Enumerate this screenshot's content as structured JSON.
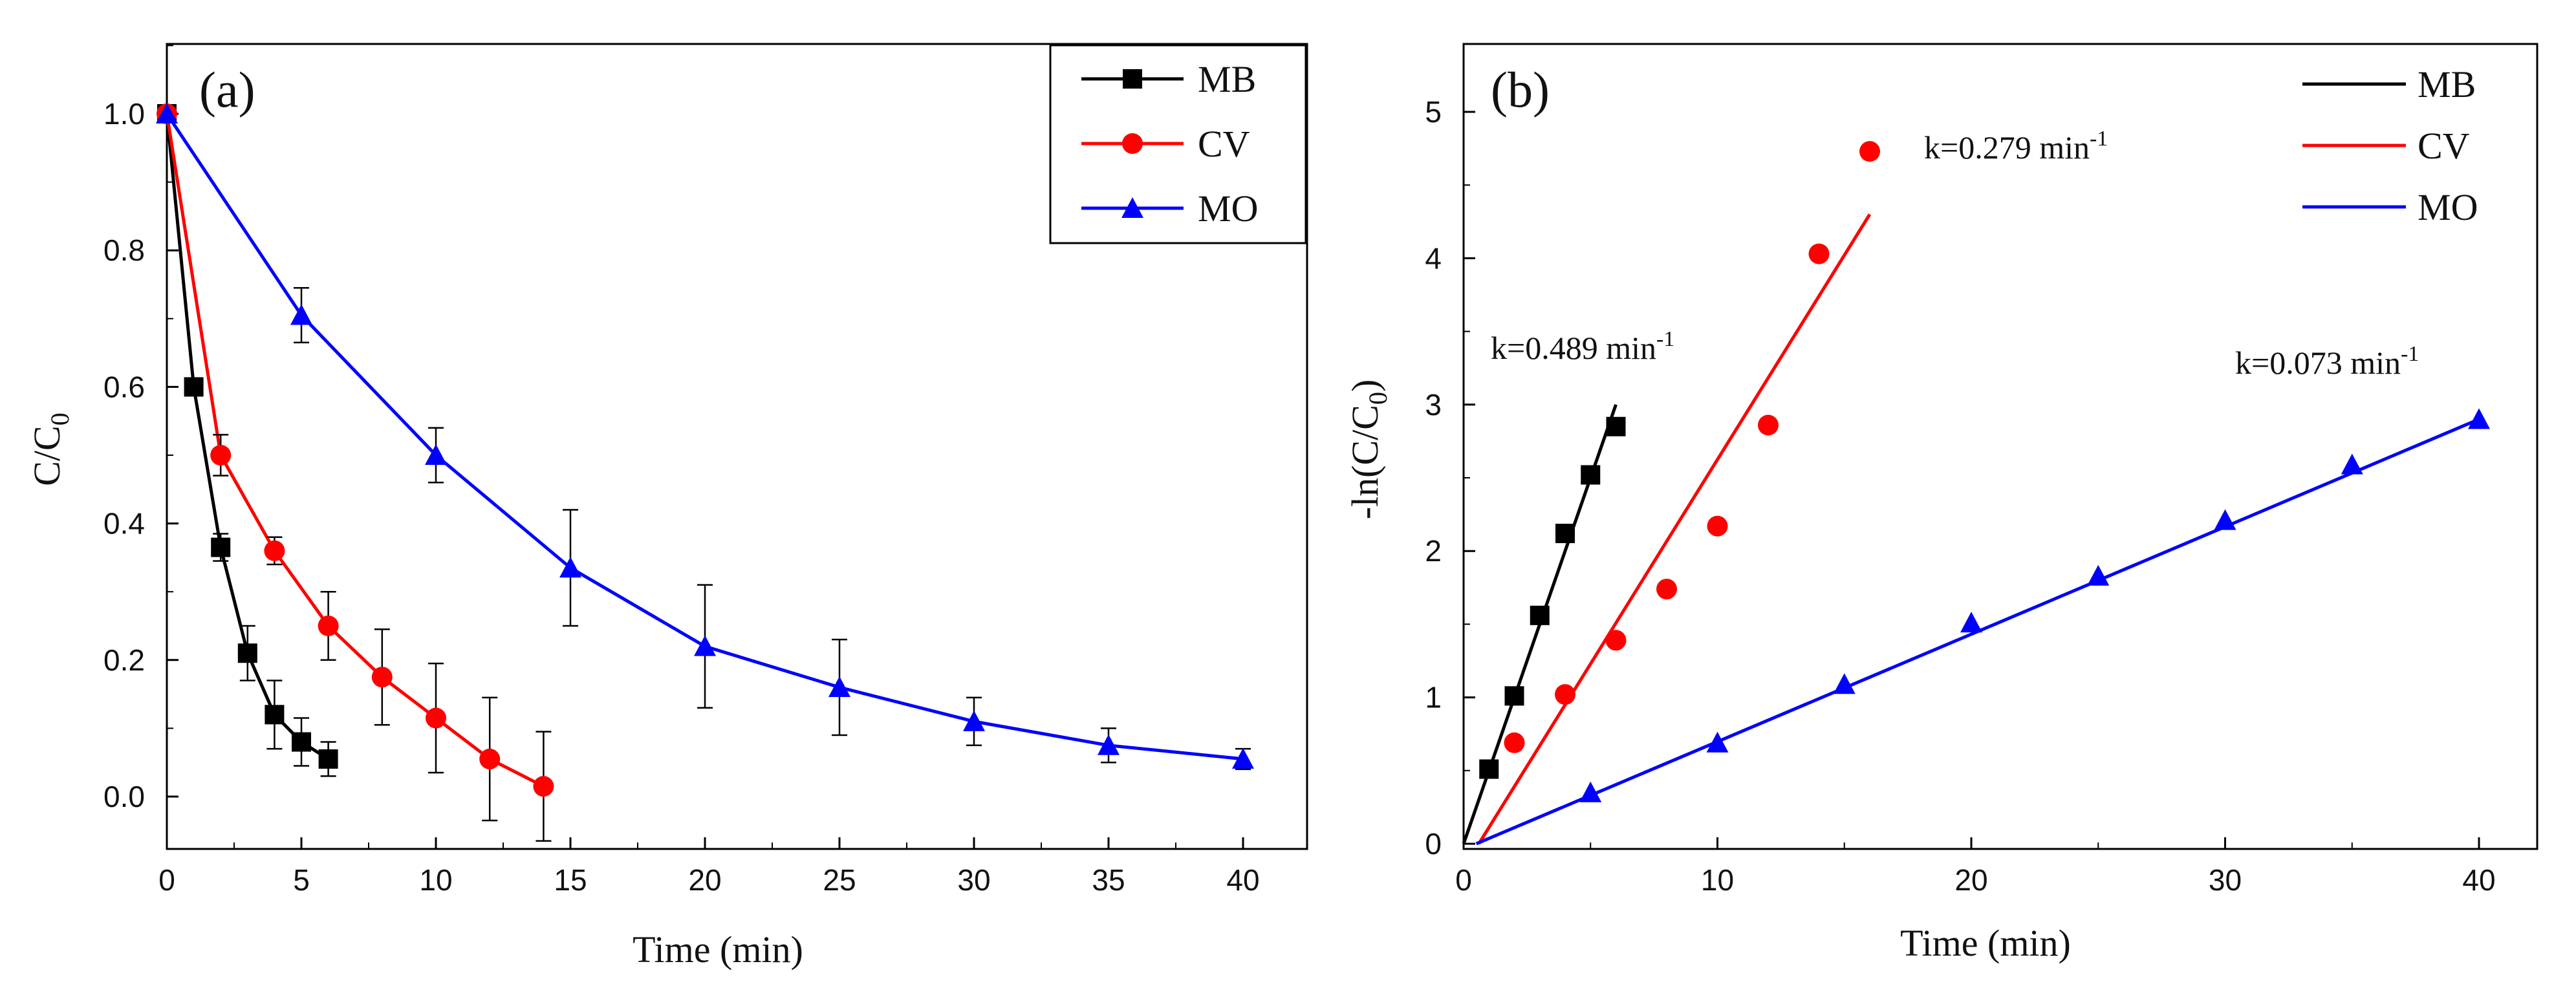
{
  "chart_data": [
    {
      "panel_label": "(a)",
      "type": "line",
      "xlabel": "Time (min)",
      "ylabel_main": "C/C",
      "ylabel_sub": "0",
      "xlim": [
        0,
        42
      ],
      "ylim": [
        -0.05,
        1.1
      ],
      "xticks": [
        0,
        5,
        10,
        15,
        20,
        25,
        30,
        35,
        40
      ],
      "xtick_labels": [
        "0",
        "5",
        "10",
        "15",
        "20",
        "25",
        "30",
        "35",
        "40"
      ],
      "yticks": [
        0.0,
        0.2,
        0.4,
        0.6,
        0.8,
        1.0
      ],
      "ytick_labels": [
        "0.0",
        "0.2",
        "0.4",
        "0.6",
        "0.8",
        "1.0"
      ],
      "legend_position": "top-right",
      "series": [
        {
          "name": "MB",
          "color": "#000000",
          "marker": "square",
          "x": [
            0,
            1,
            2,
            3,
            4,
            5,
            6
          ],
          "y": [
            1.0,
            0.6,
            0.365,
            0.21,
            0.12,
            0.08,
            0.055
          ],
          "err": [
            0,
            0,
            0.02,
            0.04,
            0.05,
            0.035,
            0.025
          ]
        },
        {
          "name": "CV",
          "color": "#ff0000",
          "marker": "circle",
          "x": [
            0,
            2,
            4,
            6,
            8,
            10,
            12,
            14
          ],
          "y": [
            1.0,
            0.5,
            0.36,
            0.25,
            0.175,
            0.115,
            0.055,
            0.015
          ],
          "err": [
            0,
            0.03,
            0.02,
            0.05,
            0.07,
            0.08,
            0.09,
            0.08
          ]
        },
        {
          "name": "MO",
          "color": "#0000ff",
          "marker": "triangle",
          "x": [
            0,
            5,
            10,
            15,
            20,
            25,
            30,
            35,
            40
          ],
          "y": [
            1.0,
            0.705,
            0.5,
            0.335,
            0.22,
            0.16,
            0.11,
            0.075,
            0.055
          ],
          "err": [
            0,
            0.04,
            0.04,
            0.085,
            0.09,
            0.07,
            0.035,
            0.025,
            0.015
          ]
        }
      ]
    },
    {
      "panel_label": "(b)",
      "type": "scatter",
      "xlabel": "Time (min)",
      "ylabel_main": "-ln(C/C",
      "ylabel_sub": "0",
      "ylabel_tail": ")",
      "xlim": [
        0,
        42
      ],
      "ylim": [
        0,
        5.5
      ],
      "xticks": [
        0,
        10,
        20,
        30,
        40
      ],
      "xtick_labels": [
        "0",
        "10",
        "20",
        "30",
        "40"
      ],
      "yticks": [
        0,
        1,
        2,
        3,
        4,
        5
      ],
      "ytick_labels": [
        "0",
        "1",
        "2",
        "3",
        "4",
        "5"
      ],
      "legend_position": "top-right",
      "series": [
        {
          "name": "MB",
          "color": "#000000",
          "marker": "square",
          "x": [
            1,
            2,
            3,
            4,
            5,
            6
          ],
          "y": [
            0.51,
            1.01,
            1.56,
            2.12,
            2.52,
            2.85
          ],
          "fit": {
            "x": [
              0,
              6
            ],
            "y": [
              0,
              3.0
            ]
          },
          "k_label": "k=0.489 min",
          "k_sup": "-1"
        },
        {
          "name": "CV",
          "color": "#ff0000",
          "marker": "circle",
          "x": [
            2,
            4,
            6,
            8,
            10,
            12,
            14,
            16
          ],
          "y": [
            0.69,
            1.02,
            1.39,
            1.74,
            2.17,
            2.86,
            4.03,
            4.73
          ],
          "fit": {
            "x": [
              0.6,
              16
            ],
            "y": [
              0,
              4.3
            ]
          },
          "k_label": "k=0.279 min",
          "k_sup": "-1"
        },
        {
          "name": "MO",
          "color": "#0000ff",
          "marker": "triangle",
          "x": [
            5,
            10,
            15,
            20,
            25,
            30,
            35,
            40
          ],
          "y": [
            0.35,
            0.69,
            1.09,
            1.51,
            1.83,
            2.21,
            2.59,
            2.9
          ],
          "fit": {
            "x": [
              0.5,
              40
            ],
            "y": [
              0,
              2.9
            ]
          },
          "k_label": "k=0.073 min",
          "k_sup": "-1"
        }
      ]
    }
  ]
}
